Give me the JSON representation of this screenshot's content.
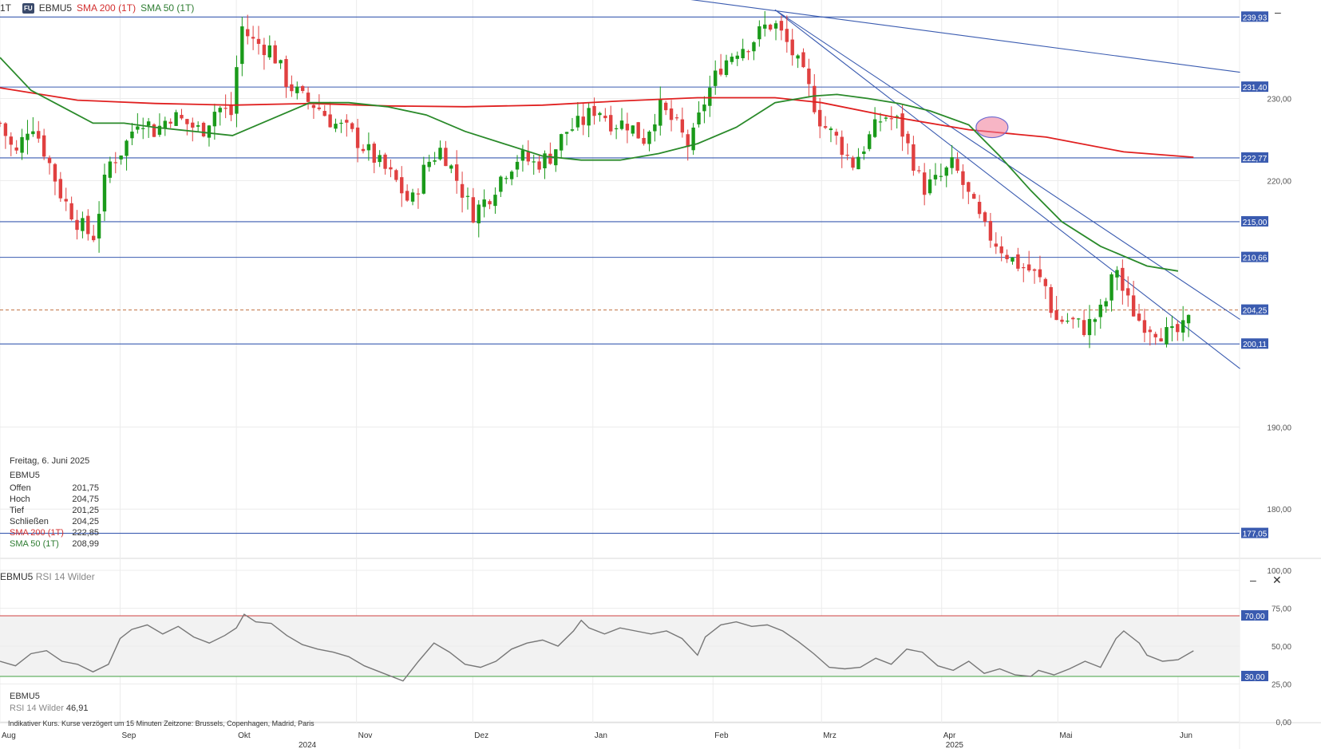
{
  "header": {
    "timeframe": "1T",
    "badge": "FU",
    "symbol": "EBMU5",
    "sma200_label": "SMA 200 (1T)",
    "sma50_label": "SMA 50 (1T)"
  },
  "colors": {
    "up": "#1a9a1a",
    "down": "#e04040",
    "sma200": "#e02020",
    "sma50": "#2a8a2a",
    "hline": "#3a5bb0",
    "trend": "#3a5bb0",
    "rsi": "#777777",
    "rsi_upper": "#d04040",
    "rsi_lower": "#40a040",
    "price_tag_bg": "#3a5bb0"
  },
  "chart_data": {
    "type": "candlestick",
    "y_range": [
      174,
      242
    ],
    "y_ticks": [
      "230,00",
      "220,00",
      "190,00",
      "180,00"
    ],
    "y_tick_values": [
      230,
      220,
      190,
      180
    ],
    "x_labels": [
      {
        "label": "Aug",
        "day": 0
      },
      {
        "label": "Sep",
        "day": 31
      },
      {
        "label": "Okt",
        "day": 61
      },
      {
        "label": "Nov",
        "day": 92
      },
      {
        "label": "Dez",
        "day": 122
      },
      {
        "label": "Jan",
        "day": 153
      },
      {
        "label": "Feb",
        "day": 184
      },
      {
        "label": "Mrz",
        "day": 212
      },
      {
        "label": "Apr",
        "day": 243
      },
      {
        "label": "Mai",
        "day": 273
      },
      {
        "label": "Jun",
        "day": 304
      }
    ],
    "year_labels": [
      {
        "label": "2024",
        "day": 76
      },
      {
        "label": "2025",
        "day": 243
      }
    ],
    "last_day": 310,
    "horizontal_levels": [
      {
        "value": 239.93,
        "label": "239,93"
      },
      {
        "value": 231.4,
        "label": "231,40"
      },
      {
        "value": 222.77,
        "label": "222,77"
      },
      {
        "value": 215.0,
        "label": "215,00"
      },
      {
        "value": 210.66,
        "label": "210,66"
      },
      {
        "value": 200.11,
        "label": "200,11"
      },
      {
        "value": 177.05,
        "label": "177,05"
      }
    ],
    "last_price": {
      "value": 204.25,
      "label": "204,25"
    },
    "trendlines": [
      {
        "from": [
          115,
          246
        ],
        "to": [
          320,
          233.2
        ]
      },
      {
        "from": [
          200,
          240.8
        ],
        "to": [
          320,
          203.1
        ]
      },
      {
        "from": [
          200,
          240.8
        ],
        "to": [
          320,
          197.1
        ]
      }
    ],
    "ohlc_points": [
      [
        0,
        227
      ],
      [
        4,
        223
      ],
      [
        8,
        227.5
      ],
      [
        12,
        223
      ],
      [
        16,
        218
      ],
      [
        20,
        215
      ],
      [
        24,
        213
      ],
      [
        28,
        222
      ],
      [
        32,
        224
      ],
      [
        36,
        228
      ],
      [
        40,
        226
      ],
      [
        44,
        228
      ],
      [
        48,
        227
      ],
      [
        52,
        226
      ],
      [
        56,
        229
      ],
      [
        60,
        228
      ],
      [
        62,
        239
      ],
      [
        65,
        237
      ],
      [
        70,
        236
      ],
      [
        74,
        232
      ],
      [
        78,
        230
      ],
      [
        82,
        229
      ],
      [
        86,
        227
      ],
      [
        90,
        226
      ],
      [
        94,
        224
      ],
      [
        98,
        222
      ],
      [
        102,
        220
      ],
      [
        106,
        217
      ],
      [
        110,
        222
      ],
      [
        114,
        224
      ],
      [
        118,
        220
      ],
      [
        122,
        216
      ],
      [
        126,
        218
      ],
      [
        130,
        221
      ],
      [
        134,
        223
      ],
      [
        138,
        222
      ],
      [
        142,
        223
      ],
      [
        146,
        226
      ],
      [
        150,
        227
      ],
      [
        154,
        229
      ],
      [
        158,
        227
      ],
      [
        162,
        227
      ],
      [
        166,
        225
      ],
      [
        170,
        229
      ],
      [
        174,
        227
      ],
      [
        178,
        224
      ],
      [
        182,
        230
      ],
      [
        186,
        234
      ],
      [
        190,
        236
      ],
      [
        194,
        237
      ],
      [
        198,
        239
      ],
      [
        200,
        239
      ],
      [
        204,
        236
      ],
      [
        208,
        232
      ],
      [
        212,
        227
      ],
      [
        216,
        225
      ],
      [
        220,
        222
      ],
      [
        224,
        225
      ],
      [
        228,
        228
      ],
      [
        232,
        227
      ],
      [
        236,
        222
      ],
      [
        238,
        219
      ],
      [
        242,
        220
      ],
      [
        246,
        222
      ],
      [
        250,
        218
      ],
      [
        254,
        214
      ],
      [
        258,
        212
      ],
      [
        262,
        210
      ],
      [
        266,
        209
      ],
      [
        270,
        207
      ],
      [
        272,
        203
      ],
      [
        276,
        203
      ],
      [
        280,
        202
      ],
      [
        284,
        204
      ],
      [
        286,
        206
      ],
      [
        288,
        210
      ],
      [
        290,
        206
      ],
      [
        294,
        203
      ],
      [
        298,
        202
      ],
      [
        302,
        201
      ],
      [
        306,
        202
      ],
      [
        308,
        204.25
      ]
    ],
    "sma200": [
      [
        0,
        231.3
      ],
      [
        20,
        229.8
      ],
      [
        40,
        229.4
      ],
      [
        60,
        229.2
      ],
      [
        80,
        229.4
      ],
      [
        100,
        229.1
      ],
      [
        120,
        229.0
      ],
      [
        140,
        229.2
      ],
      [
        160,
        229.7
      ],
      [
        180,
        230.1
      ],
      [
        200,
        230.1
      ],
      [
        212,
        229.5
      ],
      [
        230,
        227.8
      ],
      [
        250,
        226.2
      ],
      [
        270,
        225.3
      ],
      [
        290,
        223.5
      ],
      [
        308,
        222.85
      ]
    ],
    "sma50": [
      [
        0,
        235
      ],
      [
        8,
        231
      ],
      [
        16,
        229
      ],
      [
        24,
        227
      ],
      [
        32,
        227
      ],
      [
        40,
        226.5
      ],
      [
        50,
        226
      ],
      [
        60,
        225.5
      ],
      [
        70,
        227.5
      ],
      [
        80,
        229.5
      ],
      [
        90,
        229.5
      ],
      [
        100,
        229
      ],
      [
        110,
        228
      ],
      [
        120,
        226
      ],
      [
        130,
        224.5
      ],
      [
        140,
        223
      ],
      [
        150,
        222.5
      ],
      [
        160,
        222.5
      ],
      [
        170,
        223.3
      ],
      [
        180,
        224.5
      ],
      [
        190,
        226.5
      ],
      [
        200,
        229.5
      ],
      [
        210,
        230.3
      ],
      [
        216,
        230.5
      ],
      [
        224,
        230
      ],
      [
        232,
        229.4
      ],
      [
        240,
        228.5
      ],
      [
        250,
        226.8
      ],
      [
        258,
        223
      ],
      [
        266,
        218.8
      ],
      [
        274,
        215
      ],
      [
        284,
        212
      ],
      [
        296,
        209.6
      ],
      [
        304,
        208.99
      ]
    ],
    "ellipse_day": 256,
    "ellipse_value": 226.5
  },
  "info_panel": {
    "date": "Freitag, 6. Juni 2025",
    "symbol": "EBMU5",
    "rows": [
      {
        "label": "Offen",
        "value": "201,75"
      },
      {
        "label": "Hoch",
        "value": "204,75"
      },
      {
        "label": "Tief",
        "value": "201,25"
      },
      {
        "label": "Schließen",
        "value": "204,25"
      }
    ],
    "sma200": {
      "label": "SMA 200 (1T)",
      "value": "222,85"
    },
    "sma50": {
      "label": "SMA 50 (1T)",
      "value": "208,99"
    }
  },
  "rsi": {
    "symbol": "EBMU5",
    "indicator_label": "RSI 14 Wilder",
    "value": "46,91",
    "y_ticks": [
      "100,00",
      "75,00",
      "50,00",
      "25,00",
      "0,00"
    ],
    "y_tick_values": [
      100,
      75,
      50,
      25,
      0
    ],
    "upper_label": "70,00",
    "lower_label": "30,00",
    "series": [
      [
        0,
        40
      ],
      [
        4,
        37
      ],
      [
        8,
        45
      ],
      [
        12,
        47
      ],
      [
        16,
        40
      ],
      [
        20,
        38
      ],
      [
        24,
        33
      ],
      [
        28,
        38
      ],
      [
        31,
        55
      ],
      [
        34,
        61
      ],
      [
        38,
        64
      ],
      [
        42,
        58
      ],
      [
        46,
        63
      ],
      [
        50,
        56
      ],
      [
        54,
        52
      ],
      [
        58,
        57
      ],
      [
        61,
        62
      ],
      [
        63,
        71
      ],
      [
        66,
        66
      ],
      [
        70,
        65
      ],
      [
        74,
        57
      ],
      [
        78,
        51
      ],
      [
        82,
        48
      ],
      [
        86,
        46
      ],
      [
        90,
        43
      ],
      [
        94,
        37
      ],
      [
        98,
        33
      ],
      [
        104,
        27
      ],
      [
        108,
        40
      ],
      [
        112,
        52
      ],
      [
        116,
        46
      ],
      [
        120,
        38
      ],
      [
        124,
        36
      ],
      [
        128,
        40
      ],
      [
        132,
        48
      ],
      [
        136,
        52
      ],
      [
        140,
        54
      ],
      [
        144,
        50
      ],
      [
        148,
        60
      ],
      [
        150,
        67
      ],
      [
        152,
        62
      ],
      [
        156,
        58
      ],
      [
        160,
        62
      ],
      [
        164,
        60
      ],
      [
        168,
        58
      ],
      [
        172,
        60
      ],
      [
        176,
        55
      ],
      [
        180,
        44
      ],
      [
        182,
        56
      ],
      [
        186,
        64
      ],
      [
        190,
        66
      ],
      [
        194,
        63
      ],
      [
        198,
        64
      ],
      [
        202,
        60
      ],
      [
        206,
        53
      ],
      [
        210,
        45
      ],
      [
        214,
        36
      ],
      [
        218,
        35
      ],
      [
        222,
        36
      ],
      [
        226,
        42
      ],
      [
        230,
        38
      ],
      [
        234,
        48
      ],
      [
        238,
        46
      ],
      [
        242,
        37
      ],
      [
        246,
        34
      ],
      [
        250,
        40
      ],
      [
        254,
        32
      ],
      [
        258,
        35
      ],
      [
        262,
        31
      ],
      [
        266,
        30
      ],
      [
        268,
        34
      ],
      [
        272,
        31
      ],
      [
        276,
        35
      ],
      [
        280,
        40
      ],
      [
        284,
        36
      ],
      [
        288,
        55
      ],
      [
        290,
        60
      ],
      [
        294,
        52
      ],
      [
        296,
        44
      ],
      [
        300,
        40
      ],
      [
        304,
        41
      ],
      [
        308,
        46.91
      ]
    ]
  },
  "footer": {
    "note": "Indikativer Kurs. Kurse verzögert um 15 Minuten   Zeitzone: Brussels, Copenhagen, Madrid, Paris"
  },
  "controls": {
    "minimize_main": "–",
    "minimize_rsi": "–",
    "close_rsi": "✕"
  }
}
